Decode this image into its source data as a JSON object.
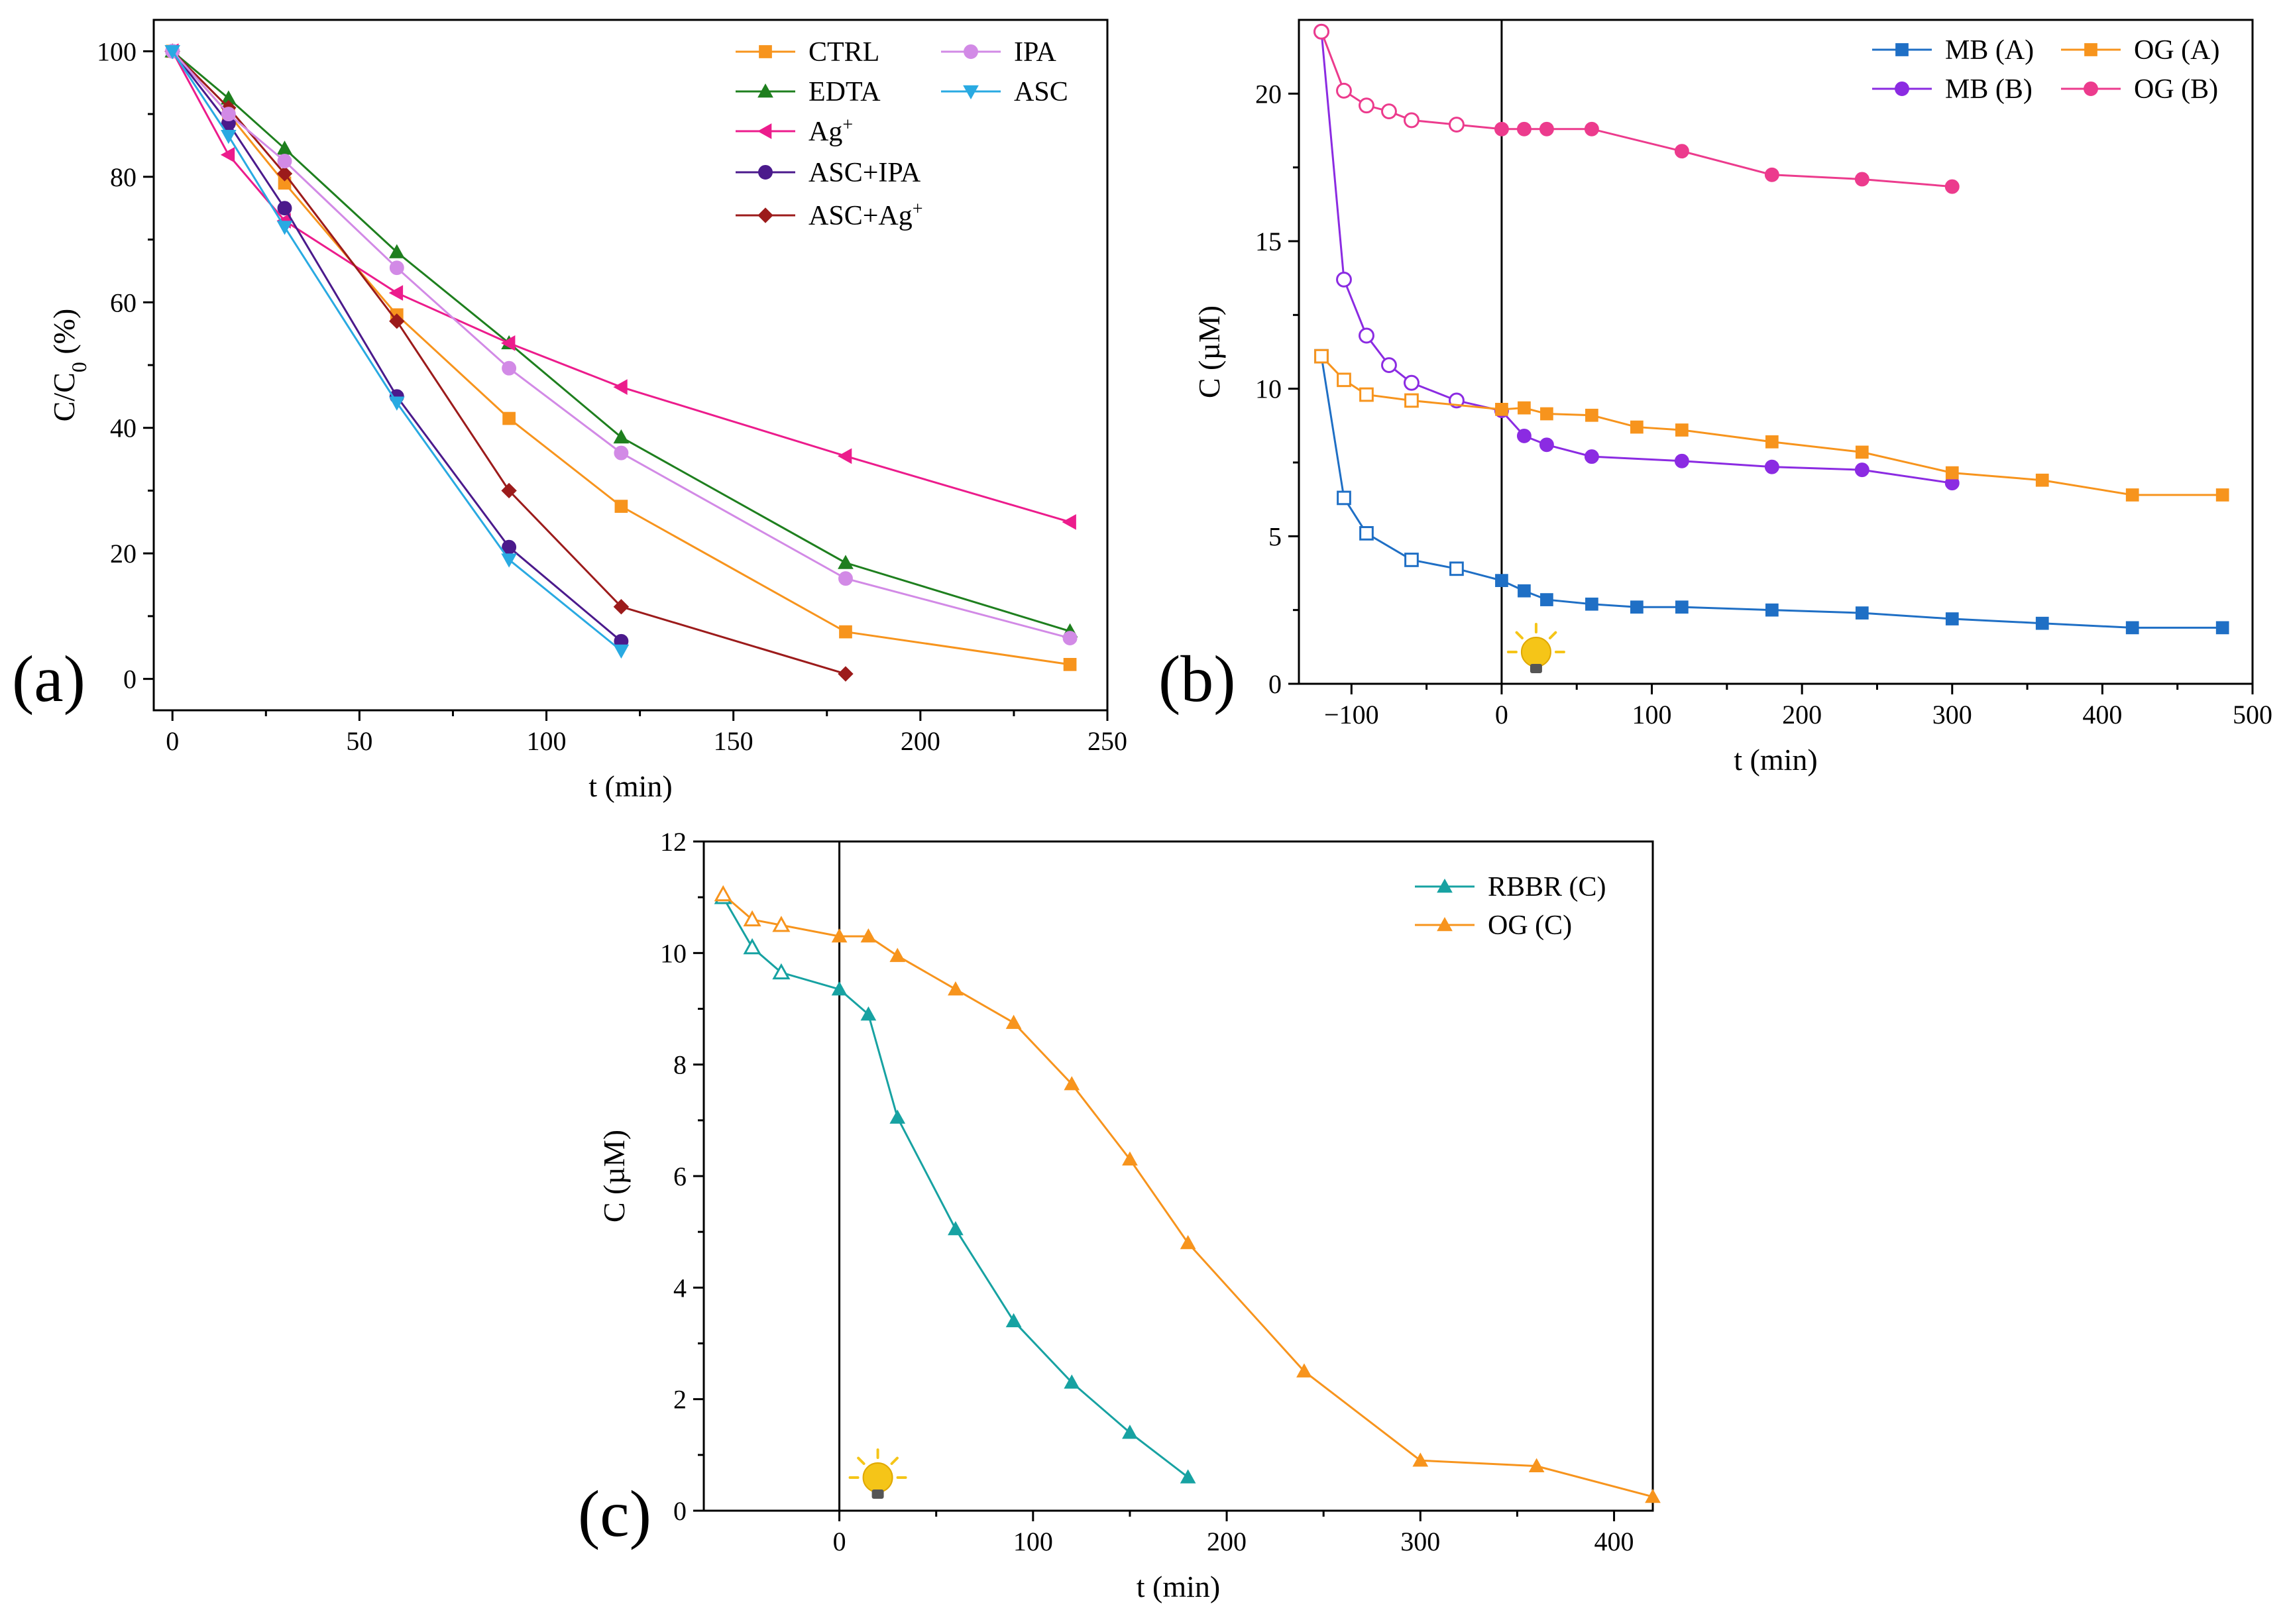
{
  "chart_data": [
    {
      "panel": "(a)",
      "type": "line",
      "xlabel": "t (min)",
      "ylabel": "C/C0 (%)",
      "xlim": [
        -5,
        250
      ],
      "ylim": [
        -5,
        105
      ],
      "xticks": [
        0,
        50,
        100,
        150,
        200,
        250
      ],
      "yticks": [
        0,
        20,
        40,
        60,
        80,
        100
      ],
      "grid": false,
      "legend_position": "top-right",
      "series": [
        {
          "name": "CTRL",
          "color": "#f7941d",
          "marker": "square",
          "x": [
            0,
            15,
            30,
            60,
            90,
            120,
            180,
            240
          ],
          "y": [
            100,
            90,
            79,
            58,
            41.5,
            27.5,
            7.5,
            2.3
          ]
        },
        {
          "name": "EDTA",
          "color": "#1e7f1e",
          "marker": "triangle-up",
          "x": [
            0,
            15,
            30,
            60,
            90,
            120,
            180,
            240
          ],
          "y": [
            100,
            92.5,
            84.5,
            68,
            53.5,
            38.5,
            18.5,
            7.6
          ]
        },
        {
          "name": "Ag+",
          "color": "#ec1c8c",
          "marker": "triangle-left",
          "x": [
            0,
            15,
            30,
            60,
            90,
            120,
            180,
            240
          ],
          "y": [
            100,
            83.5,
            73,
            61.5,
            53.5,
            46.5,
            35.5,
            25
          ]
        },
        {
          "name": "ASC+IPA",
          "color": "#4b1a8c",
          "marker": "circle",
          "x": [
            0,
            15,
            30,
            60,
            90,
            120
          ],
          "y": [
            100,
            88.5,
            75,
            45,
            21,
            6
          ]
        },
        {
          "name": "ASC+Ag+",
          "color": "#9c1b1b",
          "marker": "diamond",
          "x": [
            0,
            15,
            30,
            60,
            90,
            120,
            180
          ],
          "y": [
            100,
            91,
            80.5,
            57,
            30,
            11.5,
            0.8
          ]
        },
        {
          "name": "IPA",
          "color": "#d28ae6",
          "marker": "circle",
          "x": [
            0,
            15,
            30,
            60,
            90,
            120,
            180,
            240
          ],
          "y": [
            100,
            90,
            82.5,
            65.5,
            49.5,
            36,
            16,
            6.5
          ]
        },
        {
          "name": "ASC",
          "color": "#29aae2",
          "marker": "triangle-down",
          "x": [
            0,
            15,
            30,
            60,
            90,
            120
          ],
          "y": [
            100,
            86.5,
            72,
            44,
            19,
            4.5
          ]
        }
      ]
    },
    {
      "panel": "(b)",
      "type": "line",
      "xlabel": "t (min)",
      "ylabel": "C (µM)",
      "xlim": [
        -135,
        500
      ],
      "ylim": [
        0,
        22.5
      ],
      "xticks": [
        -100,
        0,
        100,
        200,
        300,
        400,
        500
      ],
      "yticks": [
        0,
        5,
        10,
        15,
        20
      ],
      "grid": false,
      "legend_position": "top-right",
      "series": [
        {
          "name": "MB (A)",
          "color": "#1f6fc5",
          "marker": "square",
          "x": [
            -120,
            -105,
            -90,
            -60,
            -30,
            0,
            15,
            30,
            60,
            90,
            120,
            180,
            240,
            300,
            360,
            420,
            480
          ],
          "y": [
            11.1,
            6.3,
            5.1,
            4.2,
            3.9,
            3.5,
            3.15,
            2.85,
            2.7,
            2.6,
            2.6,
            2.5,
            2.4,
            2.2,
            2.05,
            1.9,
            1.9
          ]
        },
        {
          "name": "MB (B)",
          "color": "#8b2be2",
          "marker": "circle",
          "x": [
            -120,
            -105,
            -90,
            -75,
            -60,
            -30,
            0,
            15,
            30,
            60,
            120,
            180,
            240,
            300
          ],
          "y": [
            22.1,
            13.7,
            11.8,
            10.8,
            10.2,
            9.6,
            9.25,
            8.4,
            8.1,
            7.7,
            7.55,
            7.35,
            7.25,
            6.8
          ]
        },
        {
          "name": "OG (A)",
          "color": "#f7941d",
          "marker": "square",
          "x": [
            -120,
            -105,
            -90,
            -60,
            0,
            15,
            30,
            60,
            90,
            120,
            180,
            240,
            300,
            360,
            420,
            480
          ],
          "y": [
            11.1,
            10.3,
            9.8,
            9.6,
            9.3,
            9.35,
            9.15,
            9.1,
            8.7,
            8.6,
            8.2,
            7.85,
            7.15,
            6.9,
            6.4,
            6.4
          ]
        },
        {
          "name": "OG (B)",
          "color": "#ec3b8d",
          "marker": "circle",
          "x": [
            -120,
            -105,
            -90,
            -75,
            -60,
            -30,
            0,
            15,
            30,
            60,
            120,
            180,
            240,
            300
          ],
          "y": [
            22.1,
            20.1,
            19.6,
            19.4,
            19.1,
            18.95,
            18.8,
            18.8,
            18.8,
            18.8,
            18.05,
            17.25,
            17.1,
            16.85
          ]
        }
      ],
      "light_on_time": 0
    },
    {
      "panel": "(c)",
      "type": "line",
      "xlabel": "t (min)",
      "ylabel": "C (µM)",
      "xlim": [
        -70,
        420
      ],
      "ylim": [
        0,
        12
      ],
      "xticks": [
        0,
        100,
        200,
        300,
        400
      ],
      "yticks": [
        0,
        2,
        4,
        6,
        8,
        10,
        12
      ],
      "grid": false,
      "legend_position": "top-right",
      "series": [
        {
          "name": "RBBR (C)",
          "color": "#17a2a2",
          "marker": "triangle-up",
          "x": [
            -60,
            -45,
            -30,
            0,
            15,
            30,
            60,
            90,
            120,
            150,
            180
          ],
          "y": [
            11,
            10.1,
            9.65,
            9.35,
            8.9,
            7.05,
            5.05,
            3.4,
            2.3,
            1.4,
            0.6
          ]
        },
        {
          "name": "OG (C)",
          "color": "#f7941d",
          "marker": "triangle-up",
          "x": [
            -60,
            -45,
            -30,
            0,
            15,
            30,
            60,
            90,
            120,
            150,
            180,
            240,
            300,
            360,
            420
          ],
          "y": [
            11.05,
            10.6,
            10.5,
            10.3,
            10.3,
            9.95,
            9.35,
            8.75,
            7.65,
            6.3,
            4.8,
            2.5,
            0.9,
            0.8,
            0.25
          ]
        }
      ],
      "light_on_time": 0
    }
  ],
  "labels": {
    "a": {
      "panel": "(a)",
      "ylabel_main": "C/C",
      "ylabel_sub": "0",
      "ylabel_unit": " (%)",
      "xlabel": "t (min)",
      "ag_base": "Ag",
      "ag_sup": "+",
      "asc_ag_base": "ASC+Ag",
      "asc_ag_sup": "+"
    },
    "b": {
      "panel": "(b)",
      "ylabel": "C (µM)",
      "xlabel": "t (min)"
    },
    "c": {
      "panel": "(c)",
      "ylabel": "C (µM)",
      "xlabel": "t (min)"
    }
  },
  "colors": {
    "axis": "#000000",
    "bulb": "#f5c518",
    "bulb_base": "#555555"
  }
}
